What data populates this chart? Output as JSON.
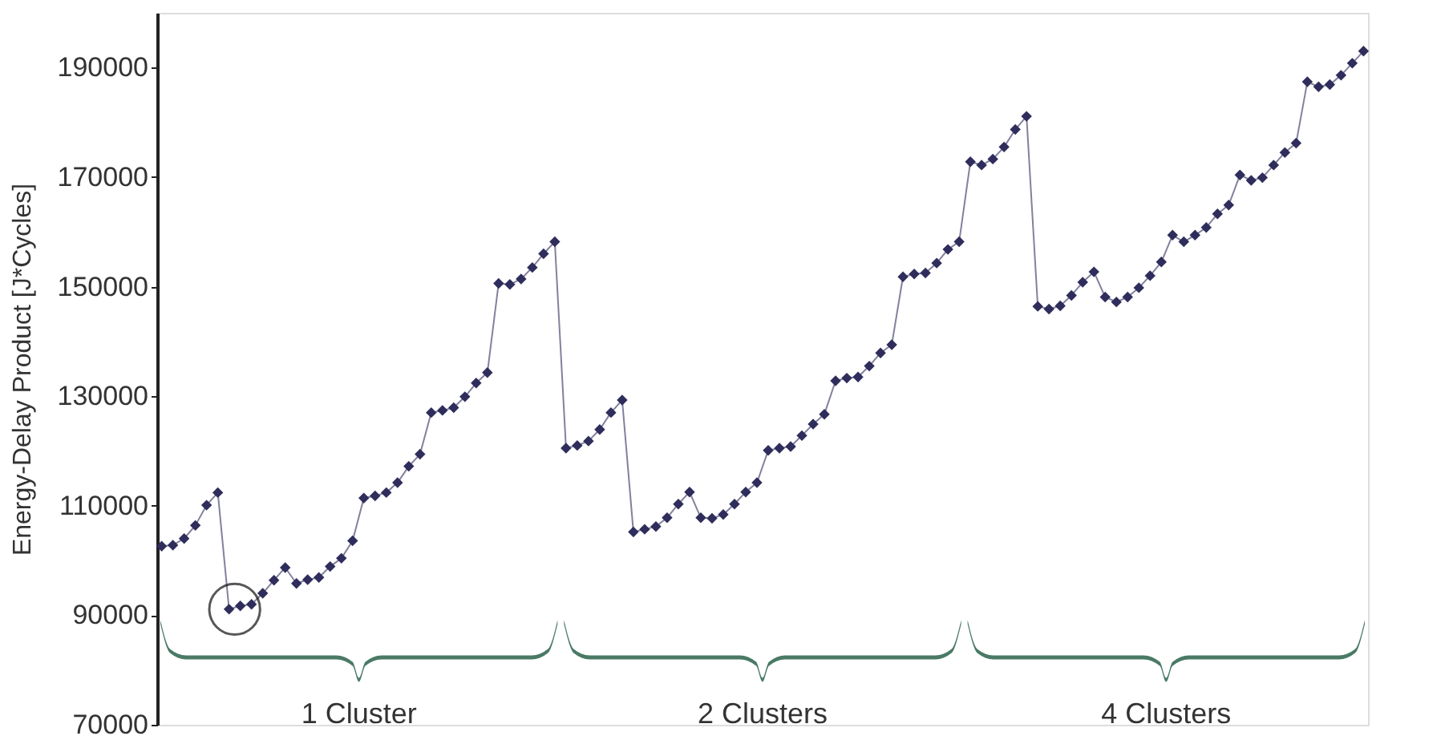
{
  "chart_data": {
    "type": "line",
    "ylabel": "Energy-Delay Product [J*Cycles]",
    "categories": [
      null,
      null,
      null,
      null,
      null,
      null,
      null,
      null,
      null,
      null,
      null,
      null,
      null,
      null,
      null,
      null,
      null,
      null,
      null,
      null,
      null,
      null,
      null,
      null,
      null,
      null,
      null,
      null,
      null,
      null,
      null,
      null,
      null,
      null,
      null,
      null,
      null,
      null,
      null,
      null,
      null,
      null,
      null,
      null,
      null,
      null,
      null,
      null,
      null,
      null,
      null,
      null,
      null,
      null,
      null,
      null,
      null,
      null,
      null,
      null,
      null,
      null,
      null,
      null,
      null,
      null,
      null,
      null,
      null,
      null,
      null,
      null,
      null,
      null,
      null,
      null,
      null,
      null,
      null,
      null,
      null,
      null,
      null,
      null,
      null,
      null,
      null,
      null,
      null,
      null,
      null,
      null,
      null,
      null,
      null,
      null,
      null,
      null,
      null,
      null,
      null,
      null,
      null,
      null,
      null,
      null,
      null,
      null
    ],
    "series": [
      {
        "color": "#2e2d5c",
        "values": [
          102600,
          102800,
          104000,
          106400,
          110100,
          112400,
          91100,
          91700,
          92000,
          94000,
          96400,
          98700,
          95800,
          96500,
          96900,
          98900,
          100400,
          103600,
          111400,
          111800,
          112400,
          114200,
          117200,
          119400,
          127000,
          127400,
          127900,
          129900,
          132400,
          134300,
          150600,
          150400,
          151400,
          153500,
          156000,
          158200,
          120500,
          121000,
          121800,
          123900,
          127000,
          129300,
          105200,
          105700,
          106200,
          107800,
          110300,
          112500,
          107800,
          107700,
          108400,
          110300,
          112500,
          114200,
          120100,
          120500,
          120800,
          122800,
          124900,
          126700,
          132800,
          133300,
          133500,
          135500,
          137900,
          139400,
          151800,
          152300,
          152500,
          154300,
          156800,
          158200,
          172800,
          172200,
          173300,
          175500,
          178700,
          181100,
          146400,
          145900,
          146500,
          148400,
          150800,
          152700,
          148100,
          147200,
          148100,
          149800,
          152000,
          154500,
          159400,
          158200,
          159400,
          160800,
          163300,
          164900,
          170400,
          169400,
          169900,
          172200,
          174500,
          176200,
          187400,
          186500,
          186900,
          188600,
          190800,
          193000
        ]
      }
    ],
    "marker": "diamond",
    "line_style": "solid",
    "grid": false,
    "tick_labels": "y",
    "ylim": [
      70000,
      200000
    ],
    "yticks": [
      70000,
      90000,
      110000,
      130000,
      150000,
      170000,
      190000
    ],
    "annotations": [
      "1 Cluster",
      "2 Clusters",
      "4 Clusters"
    ]
  }
}
